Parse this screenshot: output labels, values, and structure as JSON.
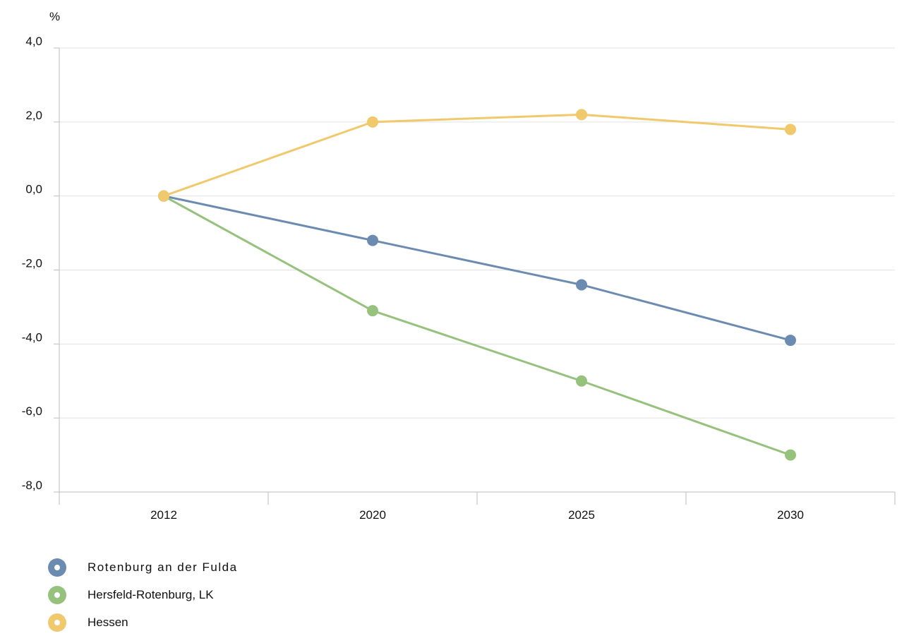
{
  "chart_data": {
    "type": "line",
    "unit_label": "%",
    "categories": [
      "2012",
      "2020",
      "2025",
      "2030"
    ],
    "ylim": [
      -8.0,
      4.0
    ],
    "yticks": [
      "4,0",
      "2,0",
      "0,0",
      "-2,0",
      "-4,0",
      "-6,0",
      "-8,0"
    ],
    "ytick_values": [
      4,
      2,
      0,
      -2,
      -4,
      -6,
      -8
    ],
    "grid": true,
    "legend_position": "bottom-left",
    "series": [
      {
        "name": "Rotenburg an der Fulda",
        "color": "#6c8bb0",
        "values": [
          0.0,
          -1.2,
          -2.4,
          -3.9
        ]
      },
      {
        "name": "Hersfeld-Rotenburg, LK",
        "color": "#96c27e",
        "values": [
          0.0,
          -3.1,
          -5.0,
          -7.0
        ]
      },
      {
        "name": "Hessen",
        "color": "#f0c96c",
        "values": [
          0.0,
          2.0,
          2.2,
          1.8
        ]
      }
    ]
  }
}
